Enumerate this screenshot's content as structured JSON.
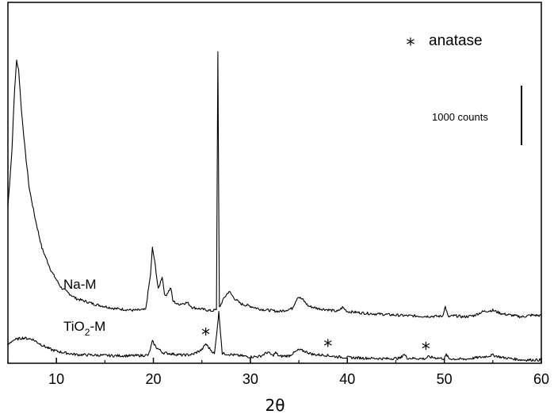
{
  "chart_data": {
    "type": "line",
    "xlabel": "2θ",
    "ylabel": "",
    "xlim": [
      5,
      60
    ],
    "x_ticks": [
      10,
      20,
      30,
      40,
      50,
      60
    ],
    "y_ticks_shown": false,
    "grid": false,
    "legend_note": {
      "symbol": "*",
      "text": "anatase",
      "placement": "top-right"
    },
    "scale_bar": {
      "label": "1000 counts",
      "counts": 1000
    },
    "series": [
      {
        "name": "Na-M",
        "label_main": "Na-M",
        "points": [
          [
            5.0,
            2600
          ],
          [
            5.4,
            3500
          ],
          [
            5.7,
            4600
          ],
          [
            5.9,
            5050
          ],
          [
            6.1,
            4900
          ],
          [
            6.4,
            4200
          ],
          [
            6.8,
            3500
          ],
          [
            7.2,
            2900
          ],
          [
            7.8,
            2400
          ],
          [
            8.5,
            1900
          ],
          [
            9.5,
            1500
          ],
          [
            10.5,
            1230
          ],
          [
            12,
            1050
          ],
          [
            14,
            950
          ],
          [
            16,
            880
          ],
          [
            18,
            850
          ],
          [
            19.2,
            860
          ],
          [
            19.7,
            1450
          ],
          [
            19.9,
            1900
          ],
          [
            20.2,
            1600
          ],
          [
            20.5,
            1200
          ],
          [
            20.9,
            1420
          ],
          [
            21.2,
            1080
          ],
          [
            21.8,
            1230
          ],
          [
            22.0,
            1010
          ],
          [
            22.5,
            950
          ],
          [
            23.5,
            980
          ],
          [
            24,
            900
          ],
          [
            25,
            870
          ],
          [
            26.0,
            840
          ],
          [
            26.5,
            860
          ],
          [
            26.65,
            5200
          ],
          [
            26.8,
            900
          ],
          [
            27.3,
            1060
          ],
          [
            27.8,
            1170
          ],
          [
            28.3,
            1060
          ],
          [
            29,
            960
          ],
          [
            30,
            920
          ],
          [
            31,
            870
          ],
          [
            32,
            850
          ],
          [
            33,
            830
          ],
          [
            34.3,
            880
          ],
          [
            34.9,
            1080
          ],
          [
            35.4,
            1030
          ],
          [
            36,
            920
          ],
          [
            37,
            880
          ],
          [
            38,
            860
          ],
          [
            39,
            830
          ],
          [
            39.5,
            900
          ],
          [
            40,
            830
          ],
          [
            42,
            800
          ],
          [
            44,
            780
          ],
          [
            46,
            760
          ],
          [
            48,
            750
          ],
          [
            49.8,
            750
          ],
          [
            50.1,
            910
          ],
          [
            50.4,
            740
          ],
          [
            51,
            760
          ],
          [
            52,
            740
          ],
          [
            53,
            760
          ],
          [
            54,
            830
          ],
          [
            55,
            850
          ],
          [
            56,
            790
          ],
          [
            58,
            740
          ],
          [
            59,
            770
          ],
          [
            60,
            760
          ]
        ]
      },
      {
        "name": "TiO2-M",
        "label_main": "TiO",
        "label_sub": "2",
        "label_suffix": "-M",
        "points": [
          [
            5.0,
            600
          ],
          [
            5.5,
            680
          ],
          [
            6.5,
            720
          ],
          [
            7.5,
            700
          ],
          [
            8.5,
            600
          ],
          [
            9.5,
            520
          ],
          [
            10.5,
            480
          ],
          [
            12,
            440
          ],
          [
            14,
            430
          ],
          [
            16,
            420
          ],
          [
            18,
            420
          ],
          [
            19.5,
            430
          ],
          [
            19.9,
            660
          ],
          [
            20.3,
            560
          ],
          [
            21,
            470
          ],
          [
            22,
            450
          ],
          [
            23,
            430
          ],
          [
            24,
            440
          ],
          [
            25,
            520
          ],
          [
            25.4,
            620
          ],
          [
            25.8,
            540
          ],
          [
            26.3,
            450
          ],
          [
            26.75,
            1150
          ],
          [
            27.1,
            460
          ],
          [
            28,
            440
          ],
          [
            29,
            420
          ],
          [
            30,
            400
          ],
          [
            31,
            410
          ],
          [
            31.8,
            480
          ],
          [
            32.3,
            420
          ],
          [
            32.6,
            470
          ],
          [
            33,
            410
          ],
          [
            34,
            420
          ],
          [
            35,
            520
          ],
          [
            35.5,
            500
          ],
          [
            36.5,
            440
          ],
          [
            37.8,
            430
          ],
          [
            38.5,
            410
          ],
          [
            40,
            390
          ],
          [
            42,
            380
          ],
          [
            44,
            370
          ],
          [
            45.5,
            380
          ],
          [
            45.8,
            450
          ],
          [
            46.2,
            380
          ],
          [
            48,
            370
          ],
          [
            48.3,
            400
          ],
          [
            50,
            370
          ],
          [
            50.2,
            440
          ],
          [
            50.5,
            370
          ],
          [
            52,
            360
          ],
          [
            54,
            400
          ],
          [
            55,
            430
          ],
          [
            56,
            390
          ],
          [
            58,
            350
          ],
          [
            60,
            350
          ]
        ]
      }
    ],
    "anatase_markers": [
      25.4,
      38.0,
      48.1
    ]
  }
}
